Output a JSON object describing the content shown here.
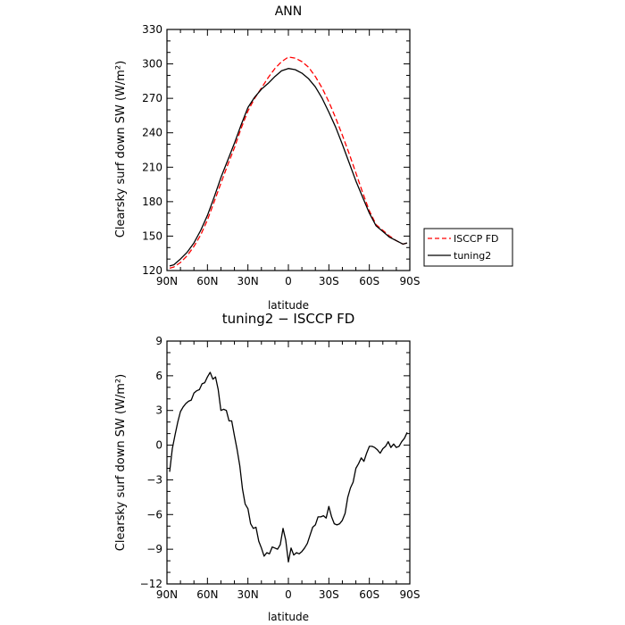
{
  "chart_data": [
    {
      "type": "line",
      "title": "ANN",
      "xlabel": "latitude",
      "ylabel": "Clearsky surf down SW (W/m²)",
      "xlim": [
        90,
        -90
      ],
      "ylim": [
        120,
        330
      ],
      "xticks": [
        90,
        60,
        30,
        0,
        -30,
        -60,
        -90
      ],
      "xtick_labels": [
        "90N",
        "60N",
        "30N",
        "0",
        "30S",
        "60S",
        "90S"
      ],
      "yticks": [
        120,
        150,
        180,
        210,
        240,
        270,
        300,
        330
      ],
      "ytick_labels": [
        "120",
        "150",
        "180",
        "210",
        "240",
        "270",
        "300",
        "330"
      ],
      "legend": {
        "placement": "outside-right",
        "entries": [
          "ISCCP FD",
          "tuning2"
        ]
      },
      "series": [
        {
          "name": "ISCCP FD",
          "color": "#ff0000",
          "style": "dashed",
          "x": [
            88,
            85,
            80,
            75,
            70,
            65,
            60,
            55,
            50,
            45,
            40,
            35,
            30,
            25,
            20,
            15,
            10,
            5,
            0,
            -5,
            -10,
            -15,
            -20,
            -25,
            -30,
            -35,
            -40,
            -45,
            -50,
            -55,
            -60,
            -65,
            -70,
            -75,
            -80,
            -85,
            -88
          ],
          "y": [
            122,
            123,
            127,
            133,
            141,
            151,
            164,
            180,
            196,
            212,
            227,
            244,
            259,
            270,
            279,
            288,
            296,
            302,
            306,
            305,
            302,
            297,
            289,
            279,
            267,
            253,
            238,
            222,
            205,
            188,
            172,
            160,
            155,
            150,
            146,
            143,
            144
          ]
        },
        {
          "name": "tuning2",
          "color": "#000000",
          "style": "solid",
          "x": [
            88,
            85,
            80,
            75,
            70,
            65,
            60,
            55,
            50,
            45,
            40,
            35,
            30,
            25,
            20,
            15,
            10,
            5,
            0,
            -5,
            -10,
            -15,
            -20,
            -25,
            -30,
            -35,
            -40,
            -45,
            -50,
            -55,
            -60,
            -65,
            -70,
            -75,
            -80,
            -85,
            -88
          ],
          "y": [
            124,
            125,
            130,
            136,
            144,
            155,
            168,
            184,
            201,
            216,
            231,
            247,
            262,
            271,
            278,
            283,
            289,
            294,
            296,
            295,
            292,
            287,
            280,
            270,
            258,
            245,
            230,
            214,
            198,
            184,
            170,
            159,
            154,
            149,
            146,
            143,
            144
          ]
        }
      ]
    },
    {
      "type": "line",
      "title": "tuning2 − ISCCP FD",
      "xlabel": "latitude",
      "ylabel": "Clearsky surf down SW (W/m²)",
      "xlim": [
        90,
        -90
      ],
      "ylim": [
        -12,
        9
      ],
      "xticks": [
        90,
        60,
        30,
        0,
        -30,
        -60,
        -90
      ],
      "xtick_labels": [
        "90N",
        "60N",
        "30N",
        "0",
        "30S",
        "60S",
        "90S"
      ],
      "yticks": [
        -12,
        -9,
        -6,
        -3,
        0,
        3,
        6,
        9
      ],
      "ytick_labels": [
        "−12",
        "−9",
        "−6",
        "−3",
        "0",
        "3",
        "6",
        "9"
      ],
      "series": [
        {
          "color": "#000000",
          "style": "solid",
          "x": [
            88,
            86,
            84,
            82,
            80,
            78,
            76,
            74,
            72,
            70,
            68,
            66,
            64,
            62,
            60,
            58,
            56,
            54,
            52,
            50,
            48,
            46,
            44,
            42,
            40,
            38,
            36,
            34,
            32,
            30,
            28,
            26,
            24,
            22,
            20,
            18,
            16,
            14,
            12,
            10,
            8,
            6,
            4,
            2,
            0,
            -2,
            -4,
            -6,
            -8,
            -10,
            -12,
            -14,
            -16,
            -18,
            -20,
            -22,
            -24,
            -26,
            -28,
            -30,
            -32,
            -34,
            -36,
            -38,
            -40,
            -42,
            -44,
            -46,
            -48,
            -50,
            -52,
            -54,
            -56,
            -58,
            -60,
            -62,
            -64,
            -66,
            -68,
            -70,
            -72,
            -74,
            -76,
            -78,
            -80,
            -82,
            -84,
            -86,
            -88
          ],
          "y": [
            -2.3,
            -0.3,
            0.9,
            2.0,
            2.9,
            3.3,
            3.6,
            3.8,
            3.9,
            4.5,
            4.7,
            4.8,
            5.3,
            5.4,
            5.9,
            6.3,
            5.7,
            5.9,
            4.8,
            3.0,
            3.1,
            3.0,
            2.1,
            2.1,
            0.8,
            -0.4,
            -1.8,
            -3.8,
            -5.1,
            -5.5,
            -6.8,
            -7.2,
            -7.1,
            -8.3,
            -8.9,
            -9.6,
            -9.3,
            -9.4,
            -8.8,
            -8.9,
            -9.0,
            -8.6,
            -7.2,
            -8.2,
            -10.1,
            -8.9,
            -9.5,
            -9.3,
            -9.4,
            -9.2,
            -8.9,
            -8.5,
            -7.8,
            -7.1,
            -6.9,
            -6.2,
            -6.2,
            -6.1,
            -6.3,
            -5.3,
            -6.2,
            -6.8,
            -6.9,
            -6.8,
            -6.5,
            -5.9,
            -4.5,
            -3.7,
            -3.2,
            -2.0,
            -1.6,
            -1.1,
            -1.4,
            -0.7,
            -0.1,
            -0.1,
            -0.2,
            -0.4,
            -0.7,
            -0.3,
            -0.1,
            0.3,
            -0.2,
            0.1,
            -0.2,
            -0.1,
            0.3,
            0.6,
            1.1
          ]
        }
      ]
    }
  ]
}
